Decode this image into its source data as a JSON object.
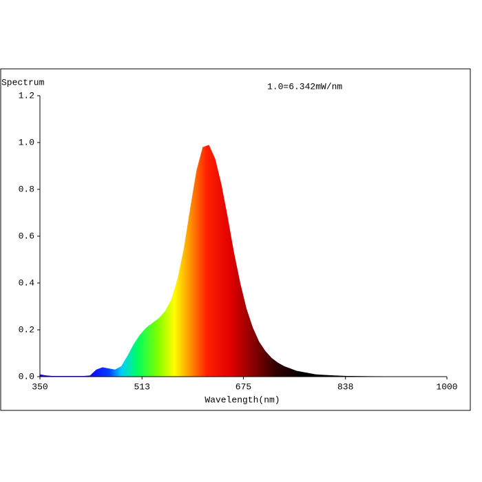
{
  "chart_data": {
    "type": "area",
    "title": "Spectrum",
    "annotation": "1.0=6.342mW/nm",
    "x_label": "Wavelength(nm)",
    "x": [
      350,
      360,
      370,
      380,
      390,
      400,
      410,
      420,
      430,
      440,
      450,
      460,
      470,
      480,
      490,
      500,
      510,
      520,
      530,
      540,
      550,
      560,
      570,
      580,
      590,
      600,
      610,
      620,
      630,
      640,
      650,
      660,
      670,
      680,
      690,
      700,
      710,
      720,
      730,
      740,
      750,
      760,
      770,
      780,
      790,
      800,
      820,
      840,
      880,
      920,
      1000
    ],
    "values": [
      0.01,
      0.005,
      0.003,
      0.003,
      0.003,
      0.003,
      0.003,
      0.003,
      0.005,
      0.03,
      0.04,
      0.035,
      0.03,
      0.045,
      0.09,
      0.14,
      0.18,
      0.21,
      0.23,
      0.25,
      0.28,
      0.33,
      0.42,
      0.55,
      0.72,
      0.88,
      0.98,
      0.99,
      0.93,
      0.82,
      0.68,
      0.53,
      0.4,
      0.29,
      0.21,
      0.15,
      0.11,
      0.08,
      0.06,
      0.045,
      0.035,
      0.025,
      0.02,
      0.015,
      0.01,
      0.008,
      0.005,
      0.003,
      0.002,
      0.001,
      0.001
    ],
    "xlim": [
      350,
      1000
    ],
    "xticks": [
      350,
      513,
      675,
      838,
      1000
    ],
    "ylim": [
      0,
      1.2
    ],
    "yticks": [
      {
        "value": 0,
        "label": "0.0"
      },
      0.2,
      0.4,
      0.6,
      0.8,
      {
        "value": 1,
        "label": "1.0"
      },
      1.2
    ]
  }
}
